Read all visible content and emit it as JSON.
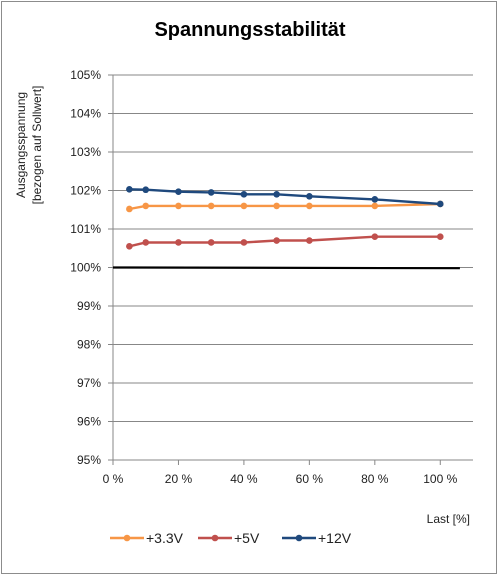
{
  "chart_data": {
    "type": "line",
    "title": "Spannungsstabilität",
    "xlabel": "Last [%]",
    "ylabel_lines": [
      "Ausgangsspannung",
      "[bezogen auf Sollwert]"
    ],
    "xlim": [
      0,
      110
    ],
    "ylim": [
      95,
      105
    ],
    "xticks": [
      0,
      20,
      40,
      60,
      80,
      100
    ],
    "xtick_labels": [
      "0 %",
      "20 %",
      "40 %",
      "60 %",
      "80 %",
      "100 %"
    ],
    "yticks": [
      95,
      96,
      97,
      98,
      99,
      100,
      101,
      102,
      103,
      104,
      105
    ],
    "ytick_labels": [
      "95%",
      "96%",
      "97%",
      "98%",
      "99%",
      "100%",
      "101%",
      "102%",
      "103%",
      "104%",
      "105%"
    ],
    "grid": "horizontal",
    "legend_position": "bottom",
    "reference_line": {
      "y": 100,
      "color": "#000000"
    },
    "series": [
      {
        "name": "+3.3V",
        "color": "#F79646",
        "x": [
          5,
          10,
          20,
          30,
          40,
          50,
          60,
          80,
          100
        ],
        "y": [
          101.52,
          101.6,
          101.6,
          101.6,
          101.6,
          101.6,
          101.6,
          101.6,
          101.65
        ]
      },
      {
        "name": "+5V",
        "color": "#C0504D",
        "x": [
          5,
          10,
          20,
          30,
          40,
          50,
          60,
          80,
          100
        ],
        "y": [
          100.55,
          100.65,
          100.65,
          100.65,
          100.65,
          100.7,
          100.7,
          100.8,
          100.8
        ]
      },
      {
        "name": "+12V",
        "color": "#1F497D",
        "x": [
          5,
          10,
          20,
          30,
          40,
          50,
          60,
          80,
          100
        ],
        "y": [
          102.03,
          102.02,
          101.97,
          101.95,
          101.9,
          101.9,
          101.85,
          101.77,
          101.65
        ]
      }
    ]
  }
}
